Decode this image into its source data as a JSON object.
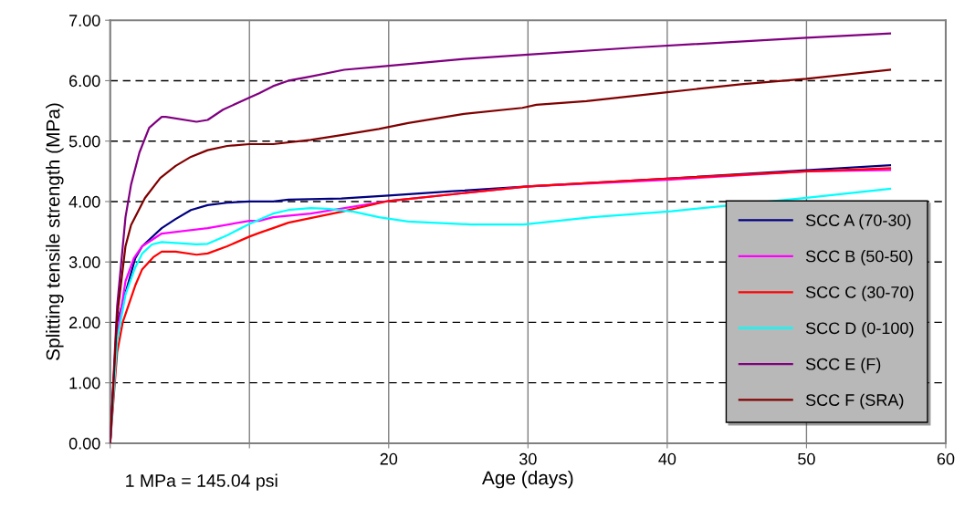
{
  "chart_data": {
    "type": "line",
    "xlabel": "Age (days)",
    "ylabel": "Splitting tensile strength (MPa)",
    "xlim": [
      0,
      60
    ],
    "xticks": [
      {
        "value": 0,
        "label": null
      },
      {
        "value": 10,
        "label": null
      },
      20,
      30,
      40,
      50,
      60
    ],
    "ylim": [
      0,
      7
    ],
    "yticks": [
      {
        "value": 0,
        "label": "0.00"
      },
      {
        "value": 1,
        "label": "1.00"
      },
      {
        "value": 2,
        "label": "2.00"
      },
      {
        "value": 3,
        "label": "3.00"
      },
      {
        "value": 4,
        "label": "4.00"
      },
      {
        "value": 5,
        "label": "5.00"
      },
      {
        "value": 6,
        "label": "6.00"
      },
      {
        "value": 7,
        "label": "7.00"
      }
    ],
    "grid": true,
    "legend": "lower right",
    "marker": "none",
    "line_style": "solid",
    "annotations": [
      "1 MPa = 145.04 psi"
    ],
    "series": [
      {
        "name": "SCC A (70-30)",
        "color": "#000080",
        "x": [
          0,
          0.5,
          1.8,
          2.3,
          3.7,
          4.7,
          5.8,
          7,
          8.4,
          10,
          11.7,
          12.8,
          16.6,
          20,
          24.6,
          30,
          40,
          50,
          56
        ],
        "values": [
          0,
          2.0,
          3.06,
          3.26,
          3.56,
          3.71,
          3.86,
          3.94,
          3.98,
          4.0,
          4.0,
          4.03,
          4.05,
          4.1,
          4.17,
          4.25,
          4.38,
          4.52,
          4.6
        ]
      },
      {
        "name": "SCC B (50-50)",
        "color": "#ff00ff",
        "x": [
          0,
          0.5,
          1.1,
          1.7,
          2.3,
          3.7,
          7,
          10,
          10.7,
          11.7,
          14.4,
          20,
          30,
          40,
          50,
          56
        ],
        "values": [
          0,
          1.8,
          2.68,
          3.06,
          3.26,
          3.47,
          3.56,
          3.68,
          3.68,
          3.74,
          3.8,
          4.01,
          4.25,
          4.36,
          4.5,
          4.52
        ]
      },
      {
        "name": "SCC C (30-70)",
        "color": "#ff0000",
        "x": [
          0,
          0.5,
          0.9,
          1.8,
          2.3,
          3.1,
          3.7,
          4.7,
          6.2,
          7,
          8.4,
          10,
          10.7,
          11.7,
          12.8,
          16.6,
          20,
          30,
          40,
          50,
          56
        ],
        "values": [
          0,
          1.5,
          2.0,
          2.61,
          2.88,
          3.08,
          3.17,
          3.17,
          3.12,
          3.14,
          3.26,
          3.42,
          3.48,
          3.56,
          3.65,
          3.83,
          4.01,
          4.25,
          4.38,
          4.5,
          4.55
        ]
      },
      {
        "name": "SCC D (0-100)",
        "color": "#00ffff",
        "x": [
          0,
          0.5,
          1.1,
          1.8,
          2.3,
          3,
          3.7,
          6.2,
          7,
          8.4,
          10,
          11.7,
          12.8,
          14.4,
          15.6,
          17.5,
          19.3,
          21.4,
          25.9,
          29.7,
          34.6,
          40.3,
          50,
          56
        ],
        "values": [
          0,
          1.7,
          2.46,
          2.91,
          3.14,
          3.29,
          3.33,
          3.29,
          3.3,
          3.44,
          3.63,
          3.8,
          3.86,
          3.89,
          3.88,
          3.83,
          3.74,
          3.67,
          3.62,
          3.62,
          3.74,
          3.84,
          4.06,
          4.21
        ]
      },
      {
        "name": "SCC E (F)",
        "color": "#800080",
        "x": [
          0,
          0.5,
          1.1,
          1.5,
          2.1,
          2.8,
          3.7,
          4,
          6.2,
          7,
          8.1,
          10,
          10.7,
          11.7,
          12.8,
          14.4,
          16.8,
          19.3,
          25.4,
          30,
          37.8,
          50,
          56
        ],
        "values": [
          0,
          2.26,
          3.74,
          4.28,
          4.81,
          5.22,
          5.4,
          5.4,
          5.32,
          5.35,
          5.52,
          5.72,
          5.79,
          5.91,
          6.0,
          6.07,
          6.18,
          6.23,
          6.36,
          6.43,
          6.55,
          6.71,
          6.78
        ]
      },
      {
        "name": "SCC F (SRA)",
        "color": "#800000",
        "x": [
          0,
          0.5,
          1.1,
          1.5,
          2.5,
          3.6,
          4.7,
          5.8,
          7,
          8.4,
          10,
          11.7,
          14.4,
          16.6,
          19.3,
          21.4,
          25.4,
          29.6,
          30.6,
          34.2,
          40,
          45.3,
          50,
          56
        ],
        "values": [
          0,
          2.1,
          3.26,
          3.61,
          4.06,
          4.39,
          4.59,
          4.74,
          4.85,
          4.92,
          4.95,
          4.95,
          5.02,
          5.1,
          5.2,
          5.3,
          5.45,
          5.55,
          5.6,
          5.66,
          5.81,
          5.94,
          6.03,
          6.18
        ]
      }
    ]
  }
}
